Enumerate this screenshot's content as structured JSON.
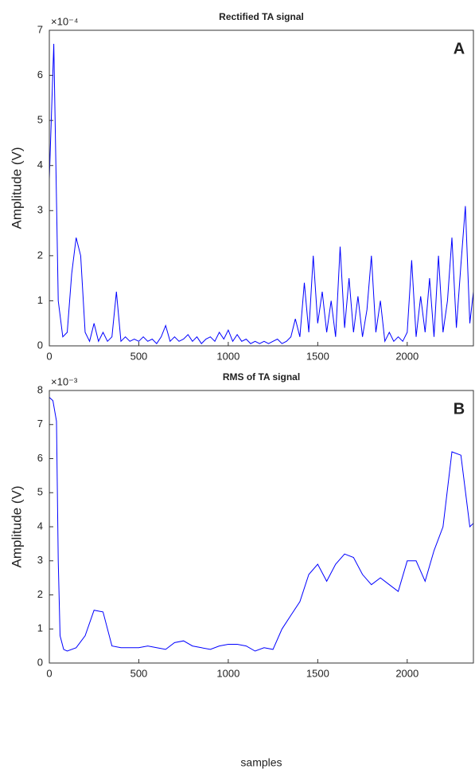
{
  "chart_data": [
    {
      "type": "line",
      "title": "Rectified TA signal",
      "ylabel": "Amplitude (V)",
      "exponent_label": "×10⁻⁴",
      "annotation": "A",
      "x": [
        0,
        25,
        50,
        75,
        100,
        125,
        150,
        175,
        200,
        225,
        250,
        275,
        300,
        325,
        350,
        375,
        400,
        425,
        450,
        475,
        500,
        525,
        550,
        575,
        600,
        625,
        650,
        675,
        700,
        725,
        750,
        775,
        800,
        825,
        850,
        875,
        900,
        925,
        950,
        975,
        1000,
        1025,
        1050,
        1075,
        1100,
        1125,
        1150,
        1175,
        1200,
        1225,
        1250,
        1275,
        1300,
        1325,
        1350,
        1375,
        1400,
        1425,
        1450,
        1475,
        1500,
        1525,
        1550,
        1575,
        1600,
        1625,
        1650,
        1675,
        1700,
        1725,
        1750,
        1775,
        1800,
        1825,
        1850,
        1875,
        1900,
        1925,
        1950,
        1975,
        2000,
        2025,
        2050,
        2075,
        2100,
        2125,
        2150,
        2175,
        2200,
        2225,
        2250,
        2275,
        2300,
        2325,
        2350,
        2370
      ],
      "series": [
        {
          "color": "#0000ff",
          "values": [
            3.7,
            6.7,
            1.0,
            0.2,
            0.3,
            1.6,
            2.4,
            2.0,
            0.3,
            0.1,
            0.5,
            0.1,
            0.3,
            0.1,
            0.2,
            1.2,
            0.1,
            0.2,
            0.1,
            0.15,
            0.1,
            0.2,
            0.1,
            0.15,
            0.05,
            0.2,
            0.45,
            0.1,
            0.2,
            0.1,
            0.15,
            0.25,
            0.1,
            0.2,
            0.05,
            0.15,
            0.2,
            0.1,
            0.3,
            0.15,
            0.35,
            0.1,
            0.25,
            0.1,
            0.15,
            0.05,
            0.1,
            0.05,
            0.1,
            0.05,
            0.1,
            0.15,
            0.05,
            0.1,
            0.2,
            0.6,
            0.2,
            1.4,
            0.3,
            2.0,
            0.5,
            1.2,
            0.3,
            1.0,
            0.2,
            2.2,
            0.4,
            1.5,
            0.3,
            1.1,
            0.2,
            0.8,
            2.0,
            0.3,
            1.0,
            0.1,
            0.3,
            0.1,
            0.2,
            0.1,
            0.3,
            1.9,
            0.2,
            1.1,
            0.3,
            1.5,
            0.2,
            2.0,
            0.3,
            1.0,
            2.4,
            0.4,
            1.8,
            3.1,
            0.5,
            1.2
          ]
        }
      ],
      "xlim": [
        0,
        2370
      ],
      "ylim": [
        0,
        7
      ],
      "xticks": [
        0,
        500,
        1000,
        1500,
        2000
      ],
      "yticks": [
        0,
        1,
        2,
        3,
        4,
        5,
        6,
        7
      ]
    },
    {
      "type": "line",
      "title": "RMS of TA signal",
      "ylabel": "Amplitude (V)",
      "xlabel": "samples",
      "exponent_label": "×10⁻³",
      "annotation": "B",
      "x": [
        0,
        20,
        40,
        50,
        60,
        80,
        100,
        150,
        200,
        250,
        300,
        350,
        400,
        450,
        500,
        550,
        600,
        650,
        700,
        750,
        800,
        850,
        900,
        950,
        1000,
        1050,
        1100,
        1150,
        1200,
        1250,
        1300,
        1350,
        1400,
        1450,
        1500,
        1550,
        1600,
        1650,
        1700,
        1750,
        1800,
        1850,
        1900,
        1950,
        2000,
        2050,
        2100,
        2150,
        2200,
        2250,
        2300,
        2350,
        2370
      ],
      "series": [
        {
          "color": "#0000ff",
          "values": [
            7.8,
            7.7,
            7.1,
            3.0,
            0.8,
            0.4,
            0.35,
            0.45,
            0.8,
            1.55,
            1.5,
            0.5,
            0.45,
            0.45,
            0.45,
            0.5,
            0.45,
            0.4,
            0.6,
            0.65,
            0.5,
            0.45,
            0.4,
            0.5,
            0.55,
            0.55,
            0.5,
            0.35,
            0.45,
            0.4,
            1.0,
            1.4,
            1.8,
            2.6,
            2.9,
            2.4,
            2.9,
            3.2,
            3.1,
            2.6,
            2.3,
            2.5,
            2.3,
            2.1,
            3.0,
            3.0,
            2.4,
            3.3,
            4.0,
            6.2,
            6.1,
            4.0,
            4.1
          ]
        }
      ],
      "xlim": [
        0,
        2370
      ],
      "ylim": [
        0,
        8
      ],
      "xticks": [
        0,
        500,
        1000,
        1500,
        2000
      ],
      "yticks": [
        0,
        1,
        2,
        3,
        4,
        5,
        6,
        7,
        8
      ]
    }
  ]
}
